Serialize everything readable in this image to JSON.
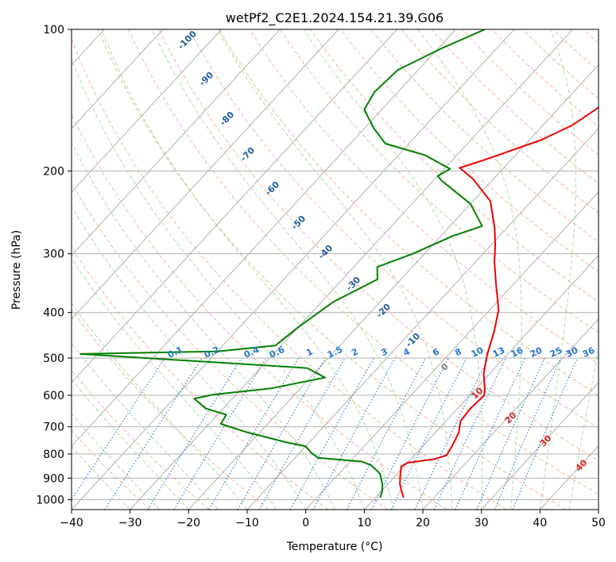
{
  "chart_data": {
    "type": "line",
    "title": "wetPf2_C2E1.2024.154.21.39.G06",
    "xlabel": "Temperature (°C)",
    "ylabel": "Pressure (hPa)",
    "xlim": [
      -40,
      50
    ],
    "ylim": [
      1050,
      100
    ],
    "y_scale": "log",
    "skew": "skew-T log-p",
    "grid": true,
    "x_ticks": [
      -40,
      -30,
      -20,
      -10,
      0,
      10,
      20,
      30,
      40,
      50
    ],
    "y_ticks": [
      1000,
      900,
      800,
      700,
      600,
      500,
      400,
      300,
      200,
      100
    ],
    "series": [
      {
        "color": "#ee0000",
        "points": [
          {
            "t": 14.8,
            "p": 990
          },
          {
            "t": 13.5,
            "p": 960
          },
          {
            "t": 12.0,
            "p": 925
          },
          {
            "t": 10.5,
            "p": 880
          },
          {
            "t": 9.5,
            "p": 850
          },
          {
            "t": 10.0,
            "p": 835
          },
          {
            "t": 14.0,
            "p": 820
          },
          {
            "t": 15.5,
            "p": 805
          },
          {
            "t": 15.0,
            "p": 770
          },
          {
            "t": 14.0,
            "p": 720
          },
          {
            "t": 12.5,
            "p": 680
          },
          {
            "t": 12.2,
            "p": 640
          },
          {
            "t": 12.5,
            "p": 600
          },
          {
            "t": 11.5,
            "p": 580
          },
          {
            "t": 9.0,
            "p": 540
          },
          {
            "t": 6.5,
            "p": 490
          },
          {
            "t": 4.2,
            "p": 440
          },
          {
            "t": 1.5,
            "p": 395
          },
          {
            "t": -2.8,
            "p": 350
          },
          {
            "t": -6.8,
            "p": 312
          },
          {
            "t": -9.0,
            "p": 290
          },
          {
            "t": -12.0,
            "p": 265
          },
          {
            "t": -17.0,
            "p": 232
          },
          {
            "t": -23.5,
            "p": 208
          },
          {
            "t": -27.5,
            "p": 197
          },
          {
            "t": -24.0,
            "p": 188
          },
          {
            "t": -18.0,
            "p": 172
          },
          {
            "t": -15.0,
            "p": 160
          },
          {
            "t": -13.5,
            "p": 148
          },
          {
            "t": -12.0,
            "p": 136
          },
          {
            "t": -11.5,
            "p": 124
          },
          {
            "t": -12.0,
            "p": 114
          },
          {
            "t": -13.5,
            "p": 105
          },
          {
            "t": -14.5,
            "p": 100
          }
        ]
      },
      {
        "color": "#008000",
        "points": [
          {
            "t": 10.8,
            "p": 990
          },
          {
            "t": 10.2,
            "p": 960
          },
          {
            "t": 9.0,
            "p": 925
          },
          {
            "t": 7.0,
            "p": 880
          },
          {
            "t": 5.0,
            "p": 855
          },
          {
            "t": 4.2,
            "p": 845
          },
          {
            "t": 2.0,
            "p": 830
          },
          {
            "t": -6.0,
            "p": 815
          },
          {
            "t": -8.0,
            "p": 795
          },
          {
            "t": -10.0,
            "p": 770
          },
          {
            "t": -14.0,
            "p": 755
          },
          {
            "t": -22.0,
            "p": 720
          },
          {
            "t": -28.0,
            "p": 690
          },
          {
            "t": -28.5,
            "p": 660
          },
          {
            "t": -33.0,
            "p": 640
          },
          {
            "t": -36.5,
            "p": 610
          },
          {
            "t": -34.0,
            "p": 598
          },
          {
            "t": -25.0,
            "p": 580
          },
          {
            "t": -17.5,
            "p": 550
          },
          {
            "t": -22.0,
            "p": 525
          },
          {
            "t": -45.0,
            "p": 505
          },
          {
            "t": -63.0,
            "p": 490
          },
          {
            "t": -40.0,
            "p": 484
          },
          {
            "t": -31.0,
            "p": 470
          },
          {
            "t": -30.0,
            "p": 430
          },
          {
            "t": -28.0,
            "p": 380
          },
          {
            "t": -24.0,
            "p": 340
          },
          {
            "t": -26.0,
            "p": 320
          },
          {
            "t": -22.0,
            "p": 300
          },
          {
            "t": -18.0,
            "p": 275
          },
          {
            "t": -14.5,
            "p": 262
          },
          {
            "t": -20.0,
            "p": 235
          },
          {
            "t": -28.5,
            "p": 210
          },
          {
            "t": -30.0,
            "p": 205
          },
          {
            "t": -29.0,
            "p": 198
          },
          {
            "t": -35.5,
            "p": 185
          },
          {
            "t": -44.0,
            "p": 175
          },
          {
            "t": -48.5,
            "p": 162
          },
          {
            "t": -53.0,
            "p": 148
          },
          {
            "t": -54.0,
            "p": 136
          },
          {
            "t": -53.5,
            "p": 122
          },
          {
            "t": -49.5,
            "p": 110
          },
          {
            "t": -45.0,
            "p": 100
          }
        ]
      }
    ],
    "mixing_ratio_labels": [
      "0.1",
      "0.2",
      "0.4",
      "0.6",
      "1",
      "1.5",
      "2",
      "3",
      "4",
      "6",
      "8",
      "10",
      "13",
      "16",
      "20",
      "25",
      "30",
      "36"
    ],
    "mixing_ratio_values": [
      0.1,
      0.2,
      0.4,
      0.6,
      1,
      1.5,
      2,
      3,
      4,
      6,
      8,
      10,
      13,
      16,
      20,
      25,
      30,
      36
    ],
    "moist_adiabat_labels": [
      "-100",
      "-90",
      "-80",
      "-70",
      "-60",
      "-50",
      "-40",
      "-30",
      "-20",
      "-10"
    ],
    "moist_adiabat_values": [
      -100,
      -90,
      -80,
      -70,
      -60,
      -50,
      -40,
      -30,
      -20,
      -10
    ],
    "theta_e_labels": [
      "0",
      "10",
      "20",
      "30",
      "40"
    ],
    "theta_e_values": [
      0,
      10,
      20,
      30,
      40
    ]
  },
  "colors": {
    "temperature": "#ee0000",
    "dewpoint": "#008000",
    "isotherm_grid": "#b0b0b0",
    "dry_adiabat": "#f4a582",
    "moist_adiabat": "#a6d8a0",
    "mixing_ratio": "#1f77d4",
    "moist_label": "#1f5f9f",
    "theta_label": "#d62728",
    "zero_label": "#7f7f7f"
  }
}
